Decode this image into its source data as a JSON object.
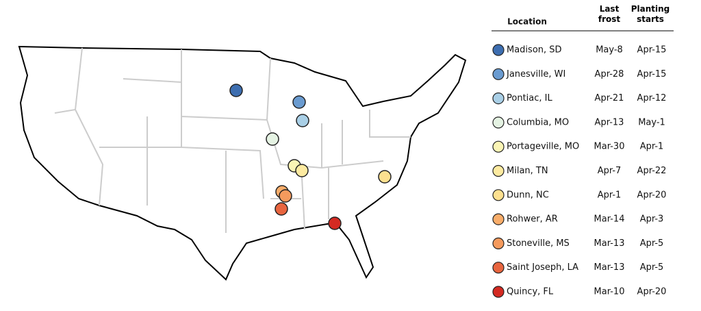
{
  "table": {
    "headers": [
      "Location",
      "Last frost",
      "Planting starts"
    ],
    "rows": [
      {
        "location": "Madison, SD",
        "last_frost": "May-8",
        "planting_starts": "Apr-15",
        "color": "#3d6eb0"
      },
      {
        "location": "Janesville, WI",
        "last_frost": "Apr-28",
        "planting_starts": "Apr-15",
        "color": "#6a9bd0"
      },
      {
        "location": "Pontiac, IL",
        "last_frost": "Apr-21",
        "planting_starts": "Apr-12",
        "color": "#a9cfe6"
      },
      {
        "location": "Columbia, MO",
        "last_frost": "Apr-13",
        "planting_starts": "May-1",
        "color": "#e5f3e3"
      },
      {
        "location": "Portageville, MO",
        "last_frost": "Mar-30",
        "planting_starts": "Apr-1",
        "color": "#fbf5b5"
      },
      {
        "location": "Milan, TN",
        "last_frost": "Apr-7",
        "planting_starts": "Apr-22",
        "color": "#fdeaa0"
      },
      {
        "location": "Dunn, NC",
        "last_frost": "Apr-1",
        "planting_starts": "Apr-20",
        "color": "#fde08f"
      },
      {
        "location": "Rohwer, AR",
        "last_frost": "Mar-14",
        "planting_starts": "Apr-3",
        "color": "#f9ad6a"
      },
      {
        "location": "Stoneville, MS",
        "last_frost": "Mar-13",
        "planting_starts": "Apr-5",
        "color": "#f59a5d"
      },
      {
        "location": "Saint Joseph, LA",
        "last_frost": "Mar-13",
        "planting_starts": "Apr-5",
        "color": "#e8653f"
      },
      {
        "location": "Quincy, FL",
        "last_frost": "Mar-10",
        "planting_starts": "Apr-20",
        "color": "#d42a22"
      }
    ]
  }
}
